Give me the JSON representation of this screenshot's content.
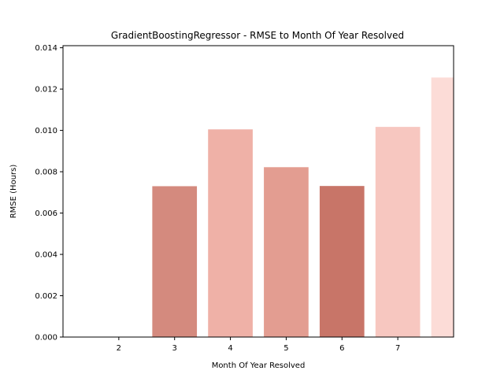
{
  "chart_data": {
    "type": "bar",
    "title": "GradientBoostingRegressor - RMSE to Month Of Year Resolved",
    "xlabel": "Month Of Year Resolved",
    "ylabel": "RMSE (Hours)",
    "x": [
      3,
      4,
      5,
      6,
      7,
      8
    ],
    "values": [
      0.0073,
      0.01005,
      0.00822,
      0.00731,
      0.01017,
      0.01256
    ],
    "colors": [
      "#d48a7e",
      "#efb1a7",
      "#e39d91",
      "#c87568",
      "#f7c7c0",
      "#fcdcd7"
    ],
    "xlim": [
      1,
      8
    ],
    "ylim": [
      0,
      0.0141
    ],
    "xticks": [
      2,
      3,
      4,
      5,
      6,
      7
    ],
    "yticks": [
      0.0,
      0.002,
      0.004,
      0.006,
      0.008,
      0.01,
      0.012,
      0.014
    ],
    "ytick_labels": [
      "0.000",
      "0.002",
      "0.004",
      "0.006",
      "0.008",
      "0.010",
      "0.012",
      "0.014"
    ],
    "grid": false,
    "legend": "none"
  }
}
